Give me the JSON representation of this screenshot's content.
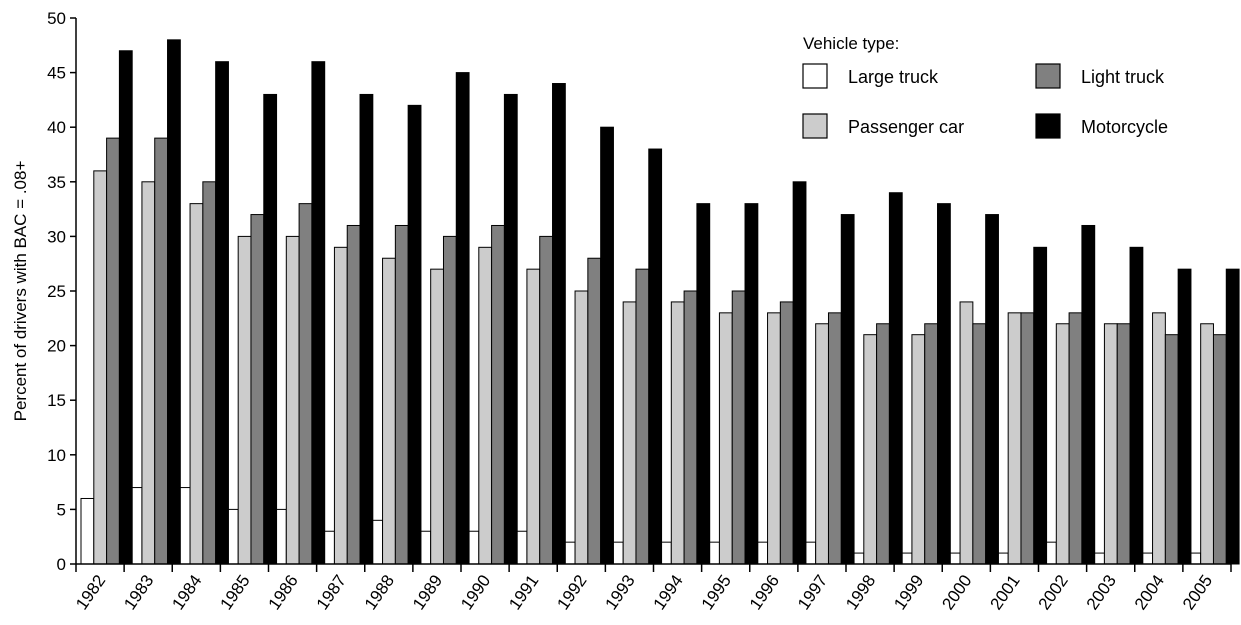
{
  "chart_data": {
    "type": "bar",
    "title": "",
    "xlabel": "",
    "ylabel": "Percent of drivers with BAC = .08+",
    "ylim": [
      0,
      50
    ],
    "yticks": [
      0,
      5,
      10,
      15,
      20,
      25,
      30,
      35,
      40,
      45,
      50
    ],
    "grid": false,
    "legend_title": "Vehicle type:",
    "legend_position": "top-right",
    "categories": [
      "1982",
      "1983",
      "1984",
      "1985",
      "1986",
      "1987",
      "1988",
      "1989",
      "1990",
      "1991",
      "1992",
      "1993",
      "1994",
      "1995",
      "1996",
      "1997",
      "1998",
      "1999",
      "2000",
      "2001",
      "2002",
      "2003",
      "2004",
      "2005"
    ],
    "series": [
      {
        "name": "Large truck",
        "color": "#ffffff",
        "values": [
          6,
          7,
          7,
          5,
          5,
          3,
          4,
          3,
          3,
          3,
          2,
          2,
          2,
          2,
          2,
          2,
          1,
          1,
          1,
          1,
          2,
          1,
          1,
          1
        ]
      },
      {
        "name": "Passenger car",
        "color": "#cccccc",
        "values": [
          36,
          35,
          33,
          30,
          30,
          29,
          28,
          27,
          29,
          27,
          25,
          24,
          24,
          23,
          23,
          22,
          21,
          21,
          24,
          23,
          22,
          22,
          23,
          22
        ]
      },
      {
        "name": "Light truck",
        "color": "#808080",
        "values": [
          39,
          39,
          35,
          32,
          33,
          31,
          31,
          30,
          31,
          30,
          28,
          27,
          25,
          25,
          24,
          23,
          22,
          22,
          22,
          23,
          23,
          22,
          21,
          21
        ]
      },
      {
        "name": "Motorcycle",
        "color": "#000000",
        "values": [
          47,
          48,
          46,
          43,
          46,
          43,
          42,
          45,
          43,
          44,
          40,
          38,
          33,
          33,
          35,
          32,
          34,
          33,
          32,
          29,
          31,
          29,
          27,
          27
        ]
      }
    ]
  }
}
